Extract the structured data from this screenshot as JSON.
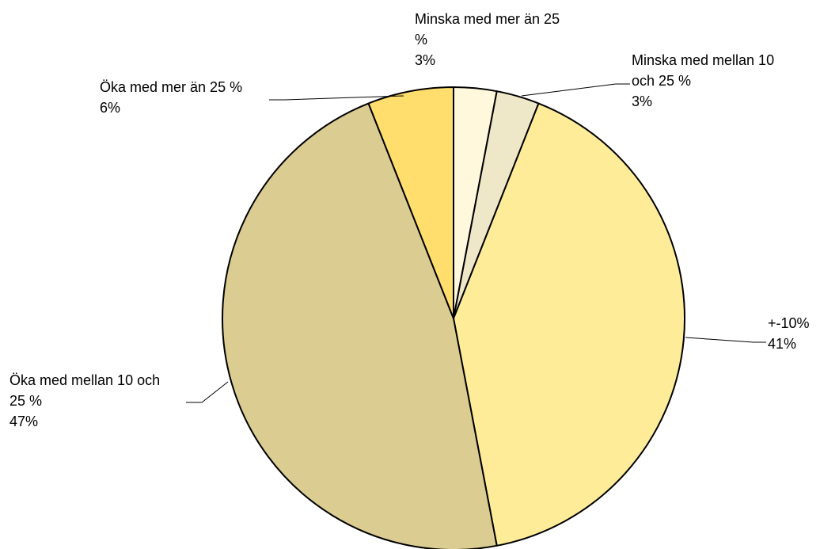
{
  "chart_data": {
    "type": "pie",
    "categories": [
      "Minska med mer än 25 %",
      "Minska med mellan 10 och 25 %",
      "+-10%",
      "Öka med mellan 10 och 25 %",
      "Öka med mer än 25 %"
    ],
    "values": [
      3,
      3,
      41,
      47,
      6
    ],
    "value_labels": [
      "3%",
      "3%",
      "41%",
      "47%",
      "6%"
    ],
    "label_lines": [
      [
        "Minska med mer än 25",
        "%"
      ],
      [
        "Minska med mellan 10",
        "och 25 %"
      ],
      [
        "+-10%"
      ],
      [
        "Öka med mellan 10 och",
        "25 %"
      ],
      [
        "Öka med mer än 25 %"
      ]
    ],
    "colors": [
      "#FFF8DC",
      "#EEE8C8",
      "#FFEC99",
      "#DBCC91",
      "#FFDE6E"
    ],
    "start_angle": "12 o'clock",
    "direction": "clockwise",
    "title": "",
    "legend": "none"
  }
}
